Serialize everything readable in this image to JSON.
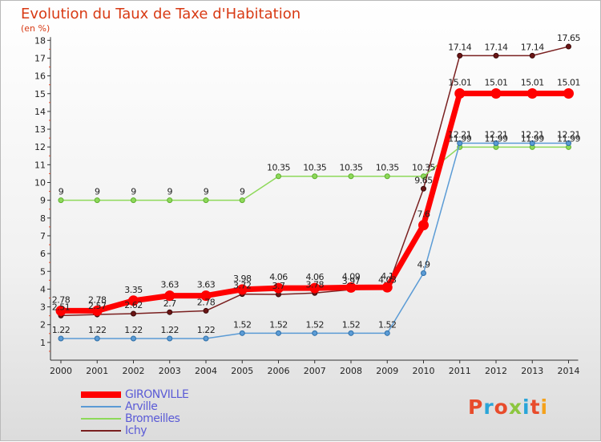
{
  "title": "Evolution du Taux de Taxe d'Habitation",
  "unit": "(en %)",
  "logo": {
    "letters": [
      "P",
      "r",
      "o",
      "x",
      "i",
      "t",
      "i"
    ],
    "colors": [
      "#e84c2c",
      "#2aa5d8",
      "#e84c2c",
      "#8cc63f",
      "#2aa5d8",
      "#e84c2c",
      "#f4a21d"
    ]
  },
  "chart_data": {
    "type": "line",
    "x": [
      "2000",
      "2001",
      "2002",
      "2003",
      "2004",
      "2005",
      "2006",
      "2007",
      "2008",
      "2009",
      "2010",
      "2011",
      "2012",
      "2013",
      "2014"
    ],
    "ylim": [
      0,
      18
    ],
    "yticks": [
      1,
      2,
      3,
      4,
      5,
      6,
      7,
      8,
      9,
      10,
      11,
      12,
      13,
      14,
      15,
      16,
      17,
      18
    ],
    "grid": false,
    "legend_position": "bottom-left",
    "series": [
      {
        "name": "GIRONVILLE",
        "color": "#ff0000",
        "width": 7,
        "values": [
          2.78,
          2.78,
          3.35,
          3.63,
          3.63,
          3.98,
          4.06,
          4.06,
          4.09,
          4.1,
          7.6,
          15.01,
          15.01,
          15.01,
          15.01
        ],
        "labels": [
          "2.78",
          "2.78",
          "3.35",
          "3.63",
          "3.63",
          "3.98",
          "4.06",
          "4.06",
          "4.09",
          "4.1",
          "7.6",
          "15.01",
          "15.01",
          "15.01",
          "15.01"
        ]
      },
      {
        "name": "Arville",
        "color": "#5b9bd5",
        "width": 1.5,
        "values": [
          1.22,
          1.22,
          1.22,
          1.22,
          1.22,
          1.52,
          1.52,
          1.52,
          1.52,
          1.52,
          4.9,
          12.21,
          12.21,
          12.21,
          12.21
        ],
        "labels": [
          "1.22",
          "1.22",
          "1.22",
          "1.22",
          "1.22",
          "1.52",
          "1.52",
          "1.52",
          "1.52",
          "1.52",
          "4.9",
          "12.21",
          "12.21",
          "12.21",
          "12.21"
        ]
      },
      {
        "name": "Bromeilles",
        "color": "#8ed95a",
        "width": 1.5,
        "values": [
          9,
          9,
          9,
          9,
          9,
          9,
          10.35,
          10.35,
          10.35,
          10.35,
          10.35,
          11.99,
          11.99,
          11.99,
          11.99
        ],
        "labels": [
          "9",
          "9",
          "9",
          "9",
          "9",
          "9",
          "10.35",
          "10.35",
          "10.35",
          "10.35",
          "10.35",
          "11.99",
          "11.99",
          "11.99",
          "11.99"
        ]
      },
      {
        "name": "Ichy",
        "color": "#7a2020",
        "width": 1.5,
        "values": [
          2.51,
          2.57,
          2.62,
          2.7,
          2.78,
          3.72,
          3.7,
          3.78,
          3.97,
          4.03,
          9.65,
          17.14,
          17.14,
          17.14,
          17.65
        ],
        "labels": [
          "2.51",
          "2.57",
          "2.62",
          "2.7",
          "2.78",
          "3.72",
          "3.7",
          "3.78",
          "3.97",
          "4.03",
          "9.65",
          "17.14",
          "17.14",
          "17.14",
          "17.65"
        ]
      }
    ]
  }
}
